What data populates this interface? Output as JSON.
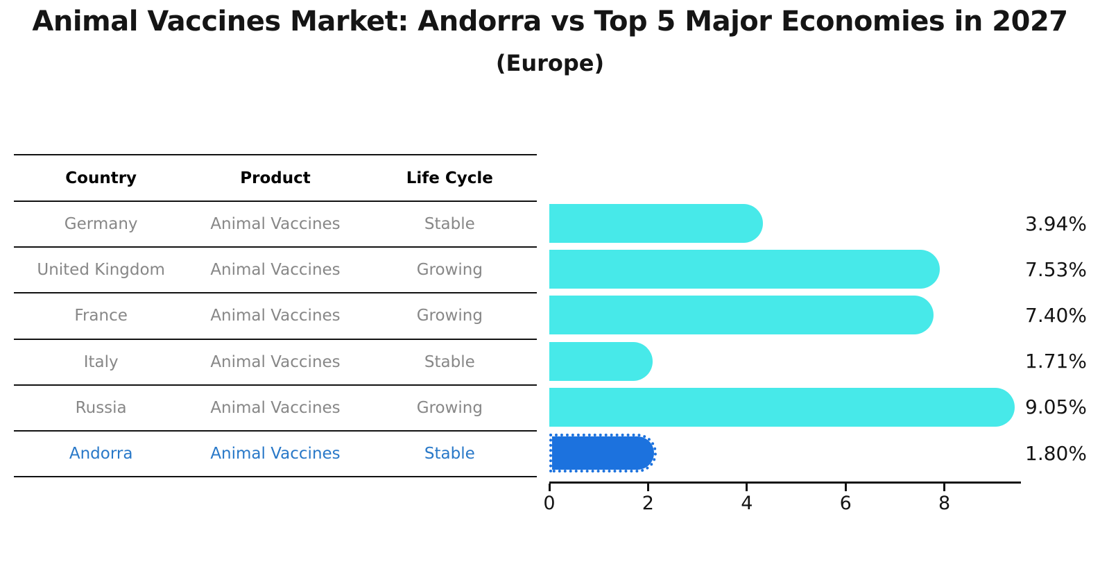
{
  "chart_data": {
    "type": "bar",
    "orientation": "horizontal",
    "title": "Animal Vaccines Market: Andorra vs Top 5 Major Economies in 2027",
    "subtitle": "(Europe)",
    "table_headers": [
      "Country",
      "Product",
      "Life Cycle"
    ],
    "rows": [
      {
        "country": "Germany",
        "product": "Animal Vaccines",
        "life_cycle": "Stable",
        "value": 3.94,
        "value_label": "3.94%",
        "highlight": false
      },
      {
        "country": "United Kingdom",
        "product": "Animal Vaccines",
        "life_cycle": "Growing",
        "value": 7.53,
        "value_label": "7.53%",
        "highlight": false
      },
      {
        "country": "France",
        "product": "Animal Vaccines",
        "life_cycle": "Growing",
        "value": 7.4,
        "value_label": "7.40%",
        "highlight": false
      },
      {
        "country": "Italy",
        "product": "Animal Vaccines",
        "life_cycle": "Stable",
        "value": 1.71,
        "value_label": "1.71%",
        "highlight": false
      },
      {
        "country": "Russia",
        "product": "Animal Vaccines",
        "life_cycle": "Growing",
        "value": 9.05,
        "value_label": "9.05%",
        "highlight": false
      },
      {
        "country": "Andorra",
        "product": "Animal Vaccines",
        "life_cycle": "Stable",
        "value": 1.8,
        "value_label": "1.80%",
        "highlight": true
      }
    ],
    "x_ticks": [
      0,
      2,
      4,
      6,
      8
    ],
    "xlim": [
      0,
      9.5
    ],
    "legend": null,
    "grid": false,
    "colors": {
      "bar": "#47E9E9",
      "highlight_bar": "#1C72DE",
      "highlight_text": "#2878C8",
      "row_text": "#878787",
      "header_text": "#000000",
      "axis": "#111111"
    }
  }
}
